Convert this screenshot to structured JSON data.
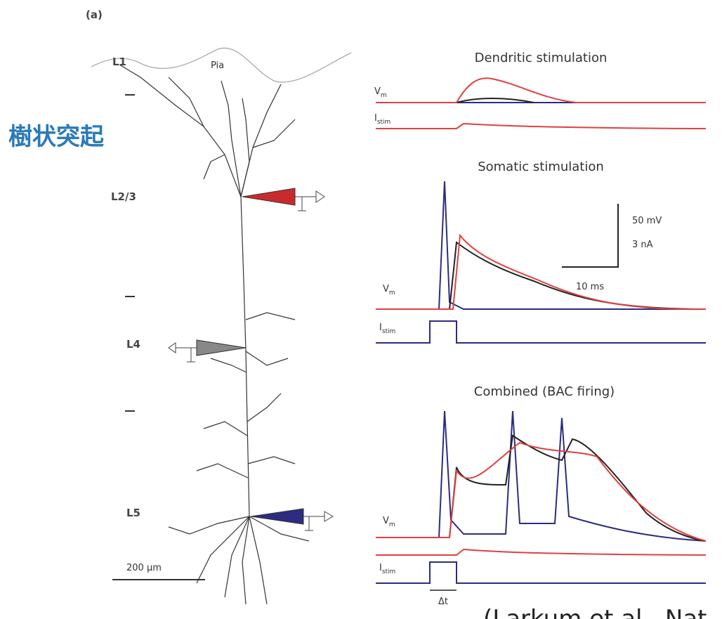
{
  "panel_label": "(a)",
  "neuron": {
    "layers": [
      "L1",
      "L2/3",
      "L4",
      "L5"
    ],
    "pia": "Pia",
    "scale_bar": "200 μm",
    "annotation": "樹状突起"
  },
  "traces": {
    "vm": {
      "main": "V",
      "sub": "m"
    },
    "istim": {
      "main": "I",
      "sub": "stim"
    },
    "panels": [
      "Dendritic stimulation",
      "Somatic stimulation",
      "Combined (BAC firing)"
    ],
    "scale": [
      "50  mV",
      "3 nA",
      "10 ms"
    ],
    "delta_t": "Δt"
  },
  "citation": "(Larkum et al., Nat"
}
